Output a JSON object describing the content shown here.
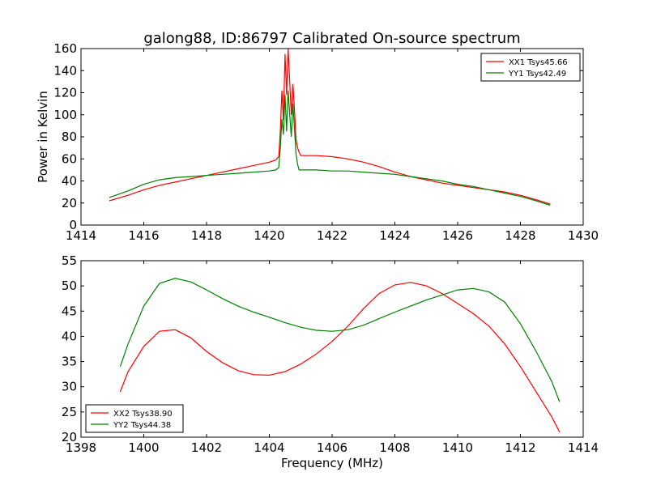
{
  "title": "galong88, ID:86797 Calibrated On-source spectrum",
  "chart_data": [
    {
      "type": "line",
      "ylabel": "Power in Kelvin",
      "xlabel": "",
      "xlim": [
        1414,
        1430
      ],
      "ylim": [
        0,
        160
      ],
      "xticks": [
        "1414",
        "1416",
        "1418",
        "1420",
        "1422",
        "1424",
        "1426",
        "1428",
        "1430"
      ],
      "yticks": [
        "0",
        "20",
        "40",
        "60",
        "80",
        "100",
        "120",
        "140",
        "160"
      ],
      "grid": false,
      "legend_position": "upper right",
      "series": [
        {
          "name": "XX1 Tsys45.66",
          "color": "#ff0000",
          "x": [
            1414.9,
            1415.5,
            1416,
            1416.5,
            1417,
            1417.5,
            1418,
            1418.5,
            1419,
            1419.5,
            1420,
            1420.2,
            1420.3,
            1420.35,
            1420.4,
            1420.45,
            1420.5,
            1420.55,
            1420.6,
            1420.65,
            1420.7,
            1420.75,
            1420.8,
            1420.85,
            1420.9,
            1420.95,
            1421.0,
            1421.1,
            1421.3,
            1421.5,
            1422,
            1422.5,
            1423,
            1423.5,
            1424,
            1424.5,
            1425,
            1425.5,
            1426,
            1426.5,
            1427,
            1427.5,
            1428,
            1428.5,
            1428.95
          ],
          "y": [
            22,
            27,
            32,
            36,
            39,
            42,
            45,
            48,
            51,
            54,
            57,
            59,
            62,
            85,
            122,
            95,
            155,
            118,
            160,
            130,
            100,
            128,
            105,
            78,
            70,
            66,
            63,
            63,
            63,
            63,
            62,
            60,
            57,
            53,
            48,
            44,
            41,
            38,
            36,
            34,
            32,
            30,
            27,
            23,
            19
          ]
        },
        {
          "name": "YY1 Tsys42.49",
          "color": "#008000",
          "x": [
            1414.9,
            1415.5,
            1416,
            1416.5,
            1417,
            1417.5,
            1418,
            1418.5,
            1419,
            1419.5,
            1420,
            1420.2,
            1420.3,
            1420.35,
            1420.4,
            1420.45,
            1420.5,
            1420.55,
            1420.6,
            1420.65,
            1420.7,
            1420.75,
            1420.8,
            1420.85,
            1420.9,
            1420.95,
            1421.0,
            1421.1,
            1421.3,
            1421.5,
            1422,
            1422.5,
            1423,
            1423.5,
            1424,
            1424.5,
            1425,
            1425.5,
            1426,
            1426.5,
            1427,
            1427.5,
            1428,
            1428.5,
            1428.95
          ],
          "y": [
            25,
            31,
            37,
            41,
            43,
            44,
            45,
            46,
            47,
            48,
            49,
            50,
            52,
            70,
            96,
            82,
            118,
            85,
            122,
            100,
            80,
            110,
            88,
            65,
            55,
            50,
            50,
            50,
            50,
            50,
            49,
            49,
            48,
            47,
            46,
            44,
            42,
            40,
            37,
            35,
            32,
            29,
            26,
            22,
            18
          ]
        }
      ]
    },
    {
      "type": "line",
      "ylabel": "",
      "xlabel": "Frequency (MHz)",
      "xlim": [
        1398,
        1414
      ],
      "ylim": [
        20,
        55
      ],
      "xticks": [
        "1398",
        "1400",
        "1402",
        "1404",
        "1406",
        "1408",
        "1410",
        "1412",
        "1414"
      ],
      "yticks": [
        "20",
        "25",
        "30",
        "35",
        "40",
        "45",
        "50",
        "55"
      ],
      "grid": false,
      "legend_position": "lower left",
      "series": [
        {
          "name": "XX2 Tsys38.90",
          "color": "#ff0000",
          "x": [
            1399.25,
            1399.5,
            1400,
            1400.5,
            1401,
            1401.5,
            1402,
            1402.5,
            1403,
            1403.5,
            1404,
            1404.5,
            1405,
            1405.5,
            1406,
            1406.5,
            1407,
            1407.5,
            1408,
            1408.5,
            1409,
            1409.5,
            1410,
            1410.5,
            1411,
            1411.5,
            1412,
            1412.5,
            1413,
            1413.25
          ],
          "y": [
            29,
            33,
            38,
            41,
            41.3,
            39.7,
            37,
            34.8,
            33.2,
            32.4,
            32.3,
            33.0,
            34.5,
            36.5,
            39.0,
            42.0,
            45.5,
            48.5,
            50.2,
            50.7,
            50.0,
            48.5,
            46.5,
            44.5,
            42.0,
            38.5,
            34.0,
            29.0,
            24.0,
            21.0
          ]
        },
        {
          "name": "YY2 Tsys44.38",
          "color": "#008000",
          "x": [
            1399.25,
            1399.5,
            1400,
            1400.5,
            1401,
            1401.5,
            1402,
            1402.5,
            1403,
            1403.5,
            1404,
            1404.5,
            1405,
            1405.5,
            1406,
            1406.5,
            1407,
            1407.5,
            1408,
            1408.5,
            1409,
            1409.5,
            1410,
            1410.5,
            1411,
            1411.5,
            1412,
            1412.5,
            1413,
            1413.25
          ],
          "y": [
            34,
            38.5,
            46,
            50.5,
            51.5,
            50.8,
            49.2,
            47.5,
            46,
            44.8,
            43.8,
            42.7,
            41.8,
            41.2,
            41.0,
            41.3,
            42.2,
            43.5,
            44.8,
            46.0,
            47.2,
            48.2,
            49.2,
            49.5,
            48.8,
            46.8,
            42.5,
            37.0,
            31.0,
            27.0
          ]
        }
      ]
    }
  ]
}
